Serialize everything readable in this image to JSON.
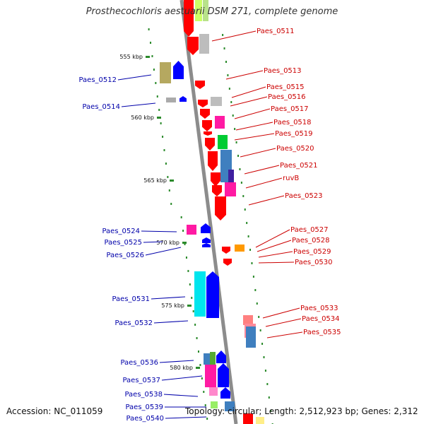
{
  "title": "Prosthecochloris aestuarii DSM 271, complete genome",
  "footer": {
    "accession": "Accession: NC_011059",
    "summary": "Topology: circular; Length: 2,512,923 bp; Genes: 2,312"
  },
  "colors": {
    "forward_label": "#cc0000",
    "reverse_label": "#0000aa",
    "backbone": "#8c8c8c",
    "tick": "#2a8a2a"
  },
  "ticks": [
    "555 kbp",
    "560 kbp",
    "565 kbp",
    "570 kbp",
    "575 kbp",
    "580 kbp"
  ],
  "labels_right": [
    "Paes_0511",
    "Paes_0513",
    "Paes_0515",
    "Paes_0516",
    "Paes_0517",
    "Paes_0518",
    "Paes_0519",
    "Paes_0520",
    "Paes_0521",
    "ruvB",
    "Paes_0523",
    "Paes_0527",
    "Paes_0528",
    "Paes_0529",
    "Paes_0530",
    "Paes_0533",
    "Paes_0534",
    "Paes_0535"
  ],
  "labels_left": [
    "Paes_0512",
    "Paes_0514",
    "Paes_0524",
    "Paes_0525",
    "Paes_0526",
    "Paes_0531",
    "Paes_0532",
    "Paes_0536",
    "Paes_0537",
    "Paes_0538",
    "Paes_0539",
    "Paes_0540"
  ]
}
